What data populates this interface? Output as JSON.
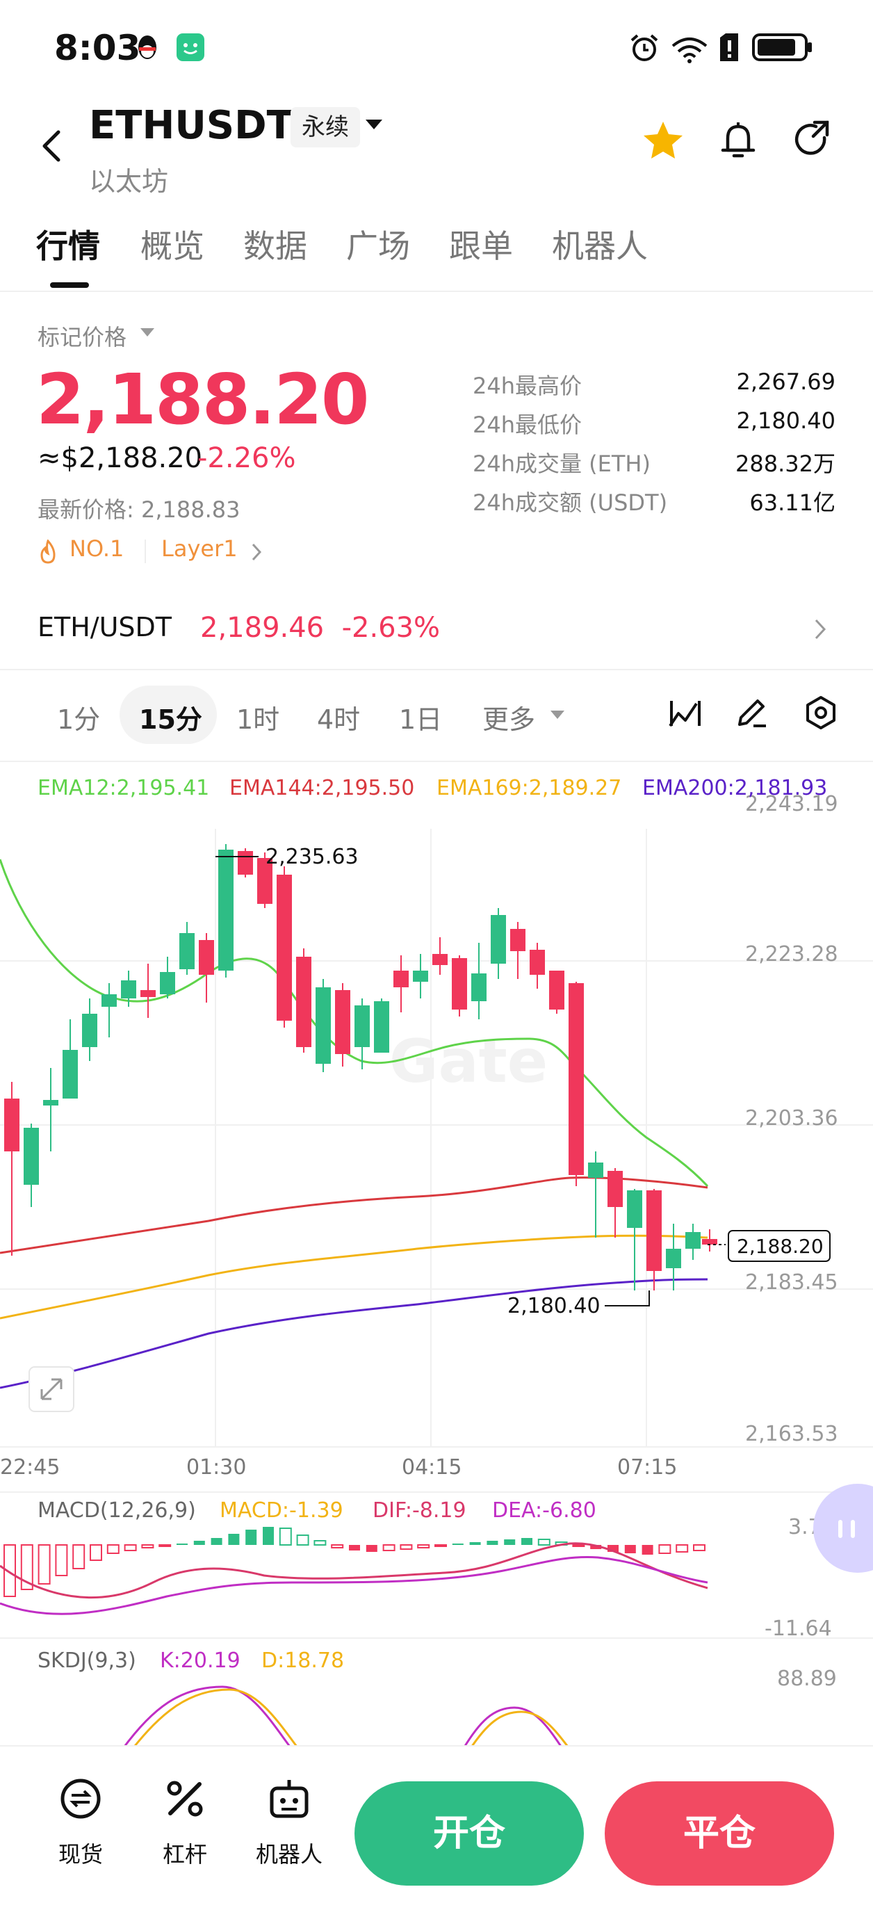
{
  "status_bar": {
    "time": "8:03"
  },
  "header": {
    "symbol": "ETHUSDT",
    "contract_type": "永续",
    "coin_name": "以太坊"
  },
  "tabs": [
    {
      "label": "行情",
      "active": true
    },
    {
      "label": "概览"
    },
    {
      "label": "数据"
    },
    {
      "label": "广场"
    },
    {
      "label": "跟单"
    },
    {
      "label": "机器人"
    }
  ],
  "price": {
    "mark_price_label": "标记价格",
    "mark_price": "2,188.20",
    "usd_price": "≈$2,188.20",
    "change_pct": "-2.26%",
    "latest_price": "最新价格: 2,188.83",
    "rank": "NO.1",
    "sector": "Layer1"
  },
  "stats": [
    {
      "label": "24h最高价",
      "value": "2,267.69"
    },
    {
      "label": "24h最低价",
      "value": "2,180.40"
    },
    {
      "label": "24h成交量 (ETH)",
      "value": "288.32万"
    },
    {
      "label": "24h成交额 (USDT)",
      "value": "63.11亿"
    }
  ],
  "pair": {
    "name": "ETH/USDT",
    "price": "2,189.46",
    "change_pct": "-2.63%"
  },
  "intervals": [
    {
      "label": "1分"
    },
    {
      "label": "15分",
      "active": true
    },
    {
      "label": "1时"
    },
    {
      "label": "4时"
    },
    {
      "label": "1日"
    },
    {
      "label": "更多"
    }
  ],
  "chart": {
    "ema12": "EMA12:2,195.41",
    "ema144": "EMA144:2,195.50",
    "ema169": "EMA169:2,189.27",
    "ema200": "EMA200:2,181.93",
    "price_ticks": [
      "2,243.19",
      "2,223.28",
      "2,203.36",
      "2,183.45",
      "2,163.53"
    ],
    "time_ticks": [
      "22:45",
      "01:30",
      "04:15",
      "07:15"
    ],
    "high_marker": "2,235.63",
    "low_marker": "2,180.40",
    "current_price_tag": "2,188.20",
    "watermark": "Gate",
    "macd_title": "MACD(12,26,9)",
    "macd_value": "MACD:-1.39",
    "dif_value": "DIF:-8.19",
    "dea_value": "DEA:-6.80",
    "macd_top": "3.72",
    "macd_bottom": "-11.64",
    "skdj_title": "SKDJ(9,3)",
    "skdj_k": "K:20.19",
    "skdj_d": "D:18.78",
    "skdj_top": "88.89",
    "colors": {
      "up": "#2ebd85",
      "down": "#f0375b",
      "ema12": "#5fd34a",
      "ema144": "#d9393e",
      "ema169": "#f2b315",
      "ema200": "#5a22c8"
    }
  },
  "bottom_nav": {
    "spot": "现货",
    "leverage": "杠杆",
    "bot": "机器人",
    "open": "开仓",
    "close": "平仓"
  }
}
